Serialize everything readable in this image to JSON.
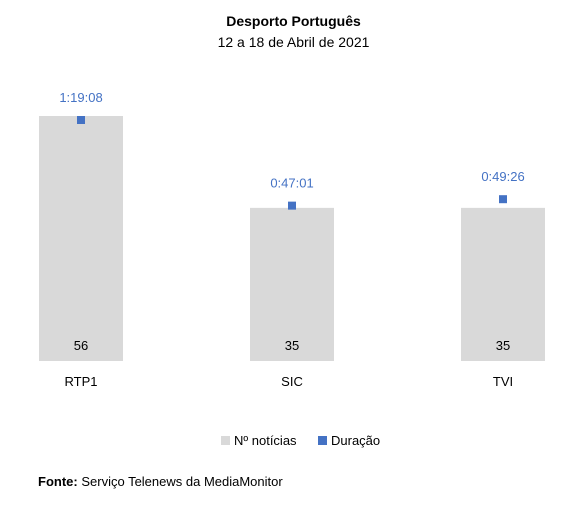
{
  "chart_data": {
    "type": "bar",
    "title": "Desporto Português",
    "subtitle": "12 a 18 de Abril de 2021",
    "categories": [
      "RTP1",
      "SIC",
      "TVI"
    ],
    "series": [
      {
        "name": "Nº notícias",
        "kind": "bar",
        "color": "#d9d9d9",
        "values": [
          56,
          35,
          35
        ],
        "labels": [
          "56",
          "35",
          "35"
        ]
      },
      {
        "name": "Duração",
        "kind": "point",
        "color": "#4472c4",
        "values_seconds": [
          4748,
          2821,
          2966
        ],
        "labels": [
          "1:19:08",
          "0:47:01",
          "0:49:26"
        ]
      }
    ],
    "legend_position": "bottom",
    "grid": false,
    "y_axis_visible": false
  },
  "footnote": {
    "label": "Fonte:",
    "text": "Serviço Telenews da MediaMonitor"
  }
}
